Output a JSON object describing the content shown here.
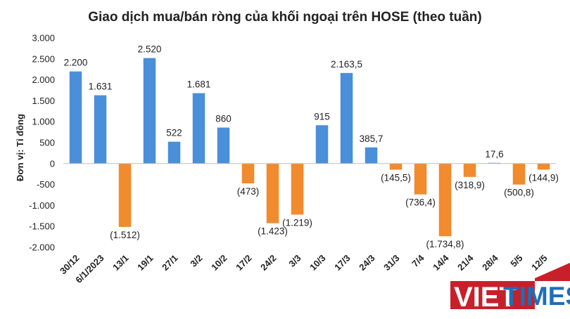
{
  "chart_data": {
    "type": "bar",
    "title": "Giao dịch mua/bán ròng của khối ngoại trên HOSE (theo tuần)",
    "xlabel": "",
    "ylabel": "Đơn vị: Tỉ đồng",
    "ylim": [
      -2000,
      3000
    ],
    "yticks": [
      {
        "value": 3000,
        "label": "3.000"
      },
      {
        "value": 2500,
        "label": "2.500"
      },
      {
        "value": 2000,
        "label": "2.000"
      },
      {
        "value": 1500,
        "label": "1.500"
      },
      {
        "value": 1000,
        "label": "1.000"
      },
      {
        "value": 500,
        "label": "500"
      },
      {
        "value": 0,
        "label": "0"
      },
      {
        "value": -500,
        "label": "-500"
      },
      {
        "value": -1000,
        "label": "-1.000"
      },
      {
        "value": -1500,
        "label": "-1.500"
      },
      {
        "value": -2000,
        "label": "-2.000"
      }
    ],
    "grid": false,
    "colors": {
      "positive": "#4a8fd9",
      "negative": "#f28a2e"
    },
    "categories": [
      "30/12",
      "6/1/2023",
      "13/1",
      "19/1",
      "27/1",
      "3/2",
      "10/2",
      "17/2",
      "24/2",
      "3/3",
      "10/3",
      "17/3",
      "24/3",
      "31/3",
      "7/4",
      "14/4",
      "21/4",
      "28/4",
      "5/5",
      "12/5"
    ],
    "values": [
      2200,
      1631,
      -1512,
      2520,
      522,
      1681,
      860,
      -473,
      -1423,
      -1219,
      915,
      2163.5,
      385.7,
      -145.5,
      -736.4,
      -1734.8,
      -318.9,
      17.6,
      -500.8,
      -144.9
    ],
    "data_labels": [
      "2.200",
      "1.631",
      "(1.512)",
      "2.520",
      "522",
      "1.681",
      "860",
      "(473)",
      "(1.423)",
      "(1.219)",
      "915",
      "2.163,5",
      "385,7",
      "(145,5)",
      "(736,4)",
      "(1.734,8)",
      "(318,9)",
      "17,6",
      "(500,8)",
      "(144,9)"
    ]
  },
  "watermark": {
    "part1": "VIET",
    "part2": "TIMES",
    "colors": {
      "red": "#c8202b",
      "blue": "#1d6fb8"
    }
  }
}
